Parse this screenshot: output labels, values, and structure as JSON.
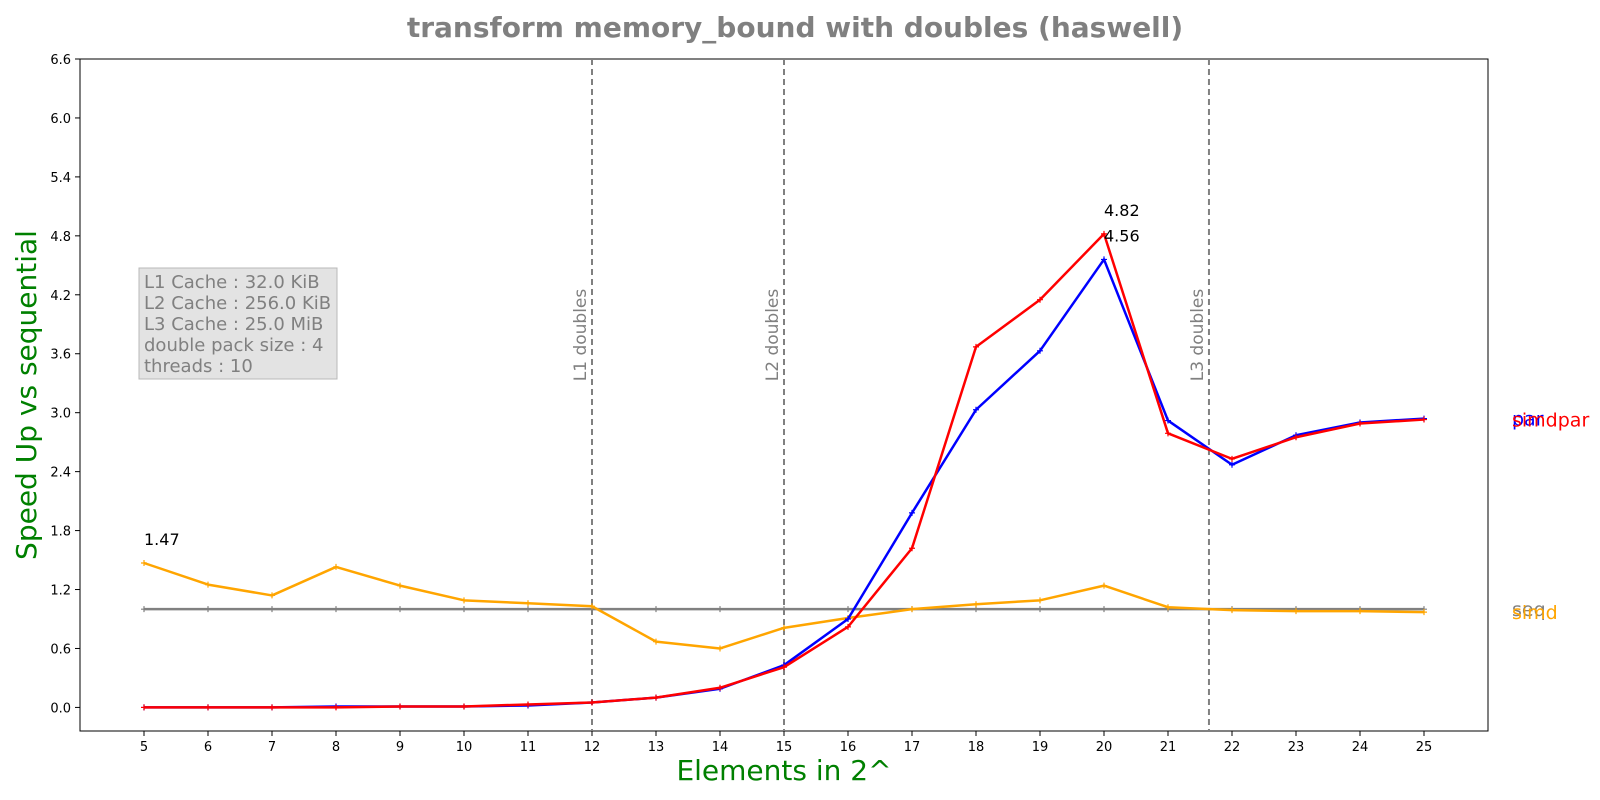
{
  "chart_data": {
    "type": "line",
    "title": "transform memory_bound with doubles  (haswell)",
    "xlabel": "Elements in 2^",
    "ylabel": "Speed Up vs sequential",
    "x": [
      5,
      6,
      7,
      8,
      9,
      10,
      11,
      12,
      13,
      14,
      15,
      16,
      17,
      18,
      19,
      20,
      21,
      22,
      23,
      24,
      25
    ],
    "xlim": [
      4,
      26
    ],
    "ylim": [
      -0.24,
      6.6
    ],
    "yticks": [
      "0.0",
      "0.6",
      "1.2",
      "1.8",
      "2.4",
      "3.0",
      "3.6",
      "4.2",
      "4.8",
      "5.4",
      "6.0",
      "6.6"
    ],
    "grid": false,
    "series": [
      {
        "name": "seq",
        "color": "#808080",
        "values": [
          1,
          1,
          1,
          1,
          1,
          1,
          1,
          1,
          1,
          1,
          1,
          1,
          1,
          1,
          1,
          1,
          1,
          1,
          1,
          1,
          1
        ]
      },
      {
        "name": "simd",
        "color": "#FFA500",
        "values": [
          1.47,
          1.25,
          1.14,
          1.43,
          1.24,
          1.09,
          1.06,
          1.03,
          0.67,
          0.6,
          0.81,
          0.91,
          1.0,
          1.05,
          1.09,
          1.24,
          1.02,
          0.99,
          0.98,
          0.98,
          0.97
        ]
      },
      {
        "name": "par",
        "color": "#0000FF",
        "values": [
          0.0,
          0.0,
          0.0,
          0.01,
          0.01,
          0.01,
          0.02,
          0.05,
          0.1,
          0.19,
          0.43,
          0.9,
          1.98,
          3.03,
          3.63,
          4.56,
          2.92,
          2.47,
          2.77,
          2.9,
          2.94
        ]
      },
      {
        "name": "simdpar",
        "color": "#FF0000",
        "values": [
          0.0,
          0.0,
          0.0,
          0.0,
          0.01,
          0.01,
          0.03,
          0.05,
          0.1,
          0.2,
          0.41,
          0.82,
          1.62,
          3.67,
          4.15,
          4.82,
          2.79,
          2.53,
          2.75,
          2.89,
          2.93
        ]
      }
    ],
    "vlines": [
      {
        "x": 12,
        "label": "L1 doubles"
      },
      {
        "x": 15,
        "label": "L2 doubles"
      },
      {
        "x": 21.64,
        "label": "L3 doubles"
      }
    ],
    "annotations": [
      {
        "x": 5,
        "y": 1.47,
        "text": "1.47"
      },
      {
        "x": 20,
        "y": 4.82,
        "text": "4.82"
      },
      {
        "x": 20,
        "y": 4.56,
        "text": "4.56"
      }
    ],
    "info_box": [
      "L1 Cache : 32.0 KiB",
      "L2 Cache : 256.0 KiB",
      "L3 Cache : 25.0 MiB",
      "double pack size : 4",
      "threads : 10"
    ]
  }
}
